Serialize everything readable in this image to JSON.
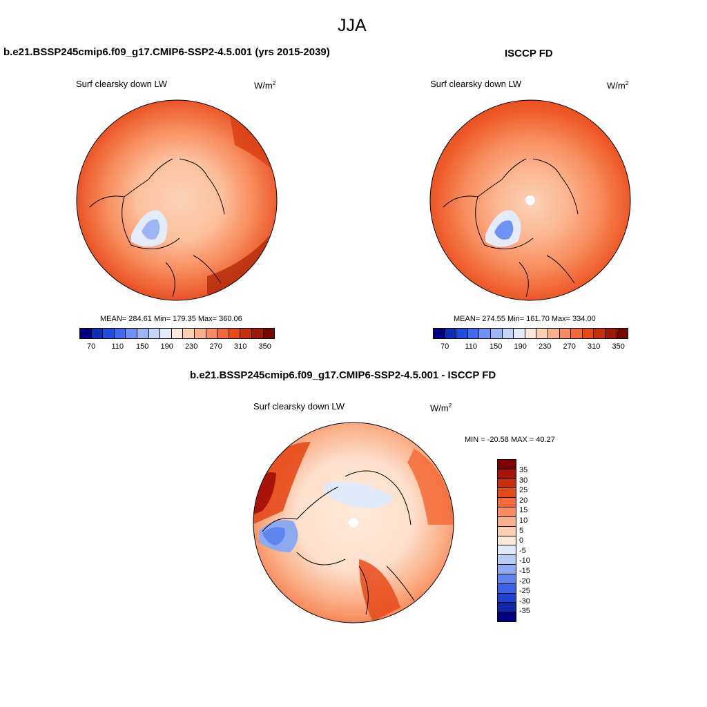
{
  "page_title": "JJA",
  "panels": {
    "model": {
      "header": "b.e21.BSSP245cmip6.f09_g17.CMIP6-SSP2-4.5.001 (yrs 2015-2039)",
      "variable": "Surf clearsky down LW",
      "units_base": "W/m",
      "units_sup": "2",
      "stats": "MEAN= 284.61  Min= 179.35  Max= 360.06"
    },
    "obs": {
      "header": "ISCCP FD",
      "variable": "Surf clearsky down LW",
      "units_base": "W/m",
      "units_sup": "2",
      "stats": "MEAN= 274.55  Min= 161.70  Max= 334.00"
    },
    "diff": {
      "header": "b.e21.BSSP245cmip6.f09_g17.CMIP6-SSP2-4.5.001 - ISCCP FD",
      "variable": "Surf clearsky down LW",
      "units_base": "W/m",
      "units_sup": "2",
      "stats": "MIN = -20.58 MAX =  40.27"
    }
  },
  "colorbars": {
    "abs": {
      "colors": [
        "#00007f",
        "#0d2fb2",
        "#1c4ee0",
        "#3d6bf2",
        "#6e93f5",
        "#9bb5f5",
        "#c6d6f6",
        "#e4ecf9",
        "#fee8d8",
        "#fcd0b0",
        "#fab088",
        "#f88d5f",
        "#f36a38",
        "#e64a19",
        "#c6300e",
        "#9d1a08",
        "#780600"
      ],
      "tick_labels": [
        "70",
        "110",
        "150",
        "190",
        "230",
        "270",
        "310",
        "350"
      ]
    },
    "diff": {
      "colors_top_to_bottom": [
        "#7f0000",
        "#a81508",
        "#c7300e",
        "#e64a19",
        "#f36a38",
        "#f88d5f",
        "#fab088",
        "#fcd0b0",
        "#fde9da",
        "#dfe9f7",
        "#b7cdf3",
        "#8daaf1",
        "#5d86ef",
        "#3763e8",
        "#1c44d0",
        "#0d27a6",
        "#00007f"
      ],
      "tick_labels": [
        "35",
        "30",
        "25",
        "20",
        "15",
        "10",
        "5",
        "0",
        "-5",
        "-10",
        "-15",
        "-20",
        "-25",
        "-30",
        "-35"
      ]
    }
  }
}
